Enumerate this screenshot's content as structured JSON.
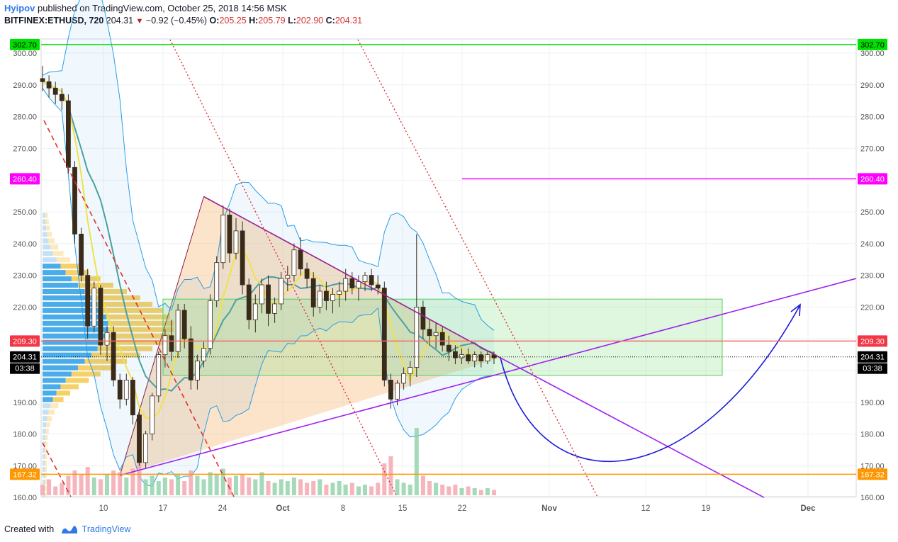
{
  "header": {
    "author": "Hyipov",
    "published_text": "published on TradingView.com, October 25, 2018 14:56 MSK",
    "symbol": "BITFINEX:ETHUSD, 720",
    "last": "204.31",
    "change": "−0.92 (−0.45%)",
    "o_label": "O:",
    "o": "205.25",
    "h_label": "H:",
    "h": "205.79",
    "l_label": "L:",
    "l": "202.90",
    "c_label": "C:",
    "c": "204.31"
  },
  "footer": {
    "created_with": "Created with",
    "brand": "TradingView"
  },
  "chart_data": {
    "type": "candlestick",
    "ylim": [
      160,
      300
    ],
    "y_ticks": [
      "300.00",
      "290.00",
      "280.00",
      "270.00",
      "260.00",
      "250.00",
      "240.00",
      "230.00",
      "220.00",
      "210.00",
      "200.00",
      "190.00",
      "180.00",
      "170.00",
      "160.00"
    ],
    "x_labels": [
      "10",
      "17",
      "24",
      "Oct",
      "8",
      "15",
      "22",
      "Nov",
      "12",
      "19",
      "Dec"
    ],
    "price_labels": [
      {
        "value": 302.7,
        "text": "302.70",
        "color": "#00e000"
      },
      {
        "value": 260.4,
        "text": "260.40",
        "color": "#ff00ff"
      },
      {
        "value": 209.3,
        "text": "209.30",
        "color": "#f23645"
      },
      {
        "value": 204.31,
        "text": "204.31",
        "color": "#000000"
      },
      {
        "value": 167.32,
        "text": "167.32",
        "color": "#ff9800"
      }
    ],
    "countdown": "03:38",
    "ohlc": [
      [
        292,
        296,
        288,
        291
      ],
      [
        291,
        293,
        286,
        289
      ],
      [
        289,
        291,
        284,
        287
      ],
      [
        287,
        289,
        282,
        285
      ],
      [
        285,
        287,
        262,
        264
      ],
      [
        264,
        266,
        240,
        243
      ],
      [
        243,
        245,
        228,
        230
      ],
      [
        230,
        232,
        210,
        214
      ],
      [
        214,
        228,
        212,
        226
      ],
      [
        226,
        227,
        205,
        208
      ],
      [
        208,
        214,
        203,
        212
      ],
      [
        212,
        214,
        195,
        197
      ],
      [
        197,
        199,
        188,
        191
      ],
      [
        191,
        199,
        189,
        197
      ],
      [
        197,
        198,
        183,
        186
      ],
      [
        186,
        188,
        170,
        171
      ],
      [
        171,
        181,
        169,
        180
      ],
      [
        180,
        193,
        178,
        192
      ],
      [
        192,
        206,
        190,
        205
      ],
      [
        205,
        213,
        201,
        211
      ],
      [
        211,
        216,
        203,
        206
      ],
      [
        206,
        221,
        204,
        219
      ],
      [
        219,
        221,
        207,
        210
      ],
      [
        210,
        214,
        194,
        197
      ],
      [
        197,
        205,
        194,
        203
      ],
      [
        203,
        209,
        201,
        207
      ],
      [
        207,
        224,
        205,
        222
      ],
      [
        222,
        236,
        220,
        234
      ],
      [
        234,
        252,
        232,
        249
      ],
      [
        249,
        251,
        234,
        237
      ],
      [
        237,
        248,
        235,
        244
      ],
      [
        244,
        247,
        224,
        227
      ],
      [
        227,
        229,
        213,
        216
      ],
      [
        216,
        224,
        212,
        221
      ],
      [
        221,
        229,
        218,
        227
      ],
      [
        227,
        230,
        214,
        218
      ],
      [
        218,
        223,
        215,
        221
      ],
      [
        221,
        231,
        219,
        229
      ],
      [
        229,
        233,
        225,
        230
      ],
      [
        230,
        240,
        228,
        238
      ],
      [
        238,
        242,
        230,
        232
      ],
      [
        232,
        234,
        226,
        229
      ],
      [
        229,
        231,
        217,
        220
      ],
      [
        220,
        227,
        218,
        225
      ],
      [
        225,
        228,
        219,
        222
      ],
      [
        222,
        226,
        218,
        224
      ],
      [
        224,
        228,
        220,
        225
      ],
      [
        225,
        232,
        222,
        229
      ],
      [
        229,
        231,
        224,
        226
      ],
      [
        226,
        230,
        222,
        228
      ],
      [
        228,
        231,
        225,
        230
      ],
      [
        230,
        232,
        225,
        227
      ],
      [
        227,
        230,
        224,
        226
      ],
      [
        226,
        228,
        195,
        197
      ],
      [
        197,
        199,
        188,
        191
      ],
      [
        191,
        197,
        189,
        196
      ],
      [
        196,
        201,
        194,
        199
      ],
      [
        199,
        203,
        195,
        201
      ],
      [
        201,
        243,
        198,
        220
      ],
      [
        220,
        222,
        210,
        213
      ],
      [
        213,
        216,
        208,
        211
      ],
      [
        211,
        215,
        207,
        212
      ],
      [
        212,
        214,
        206,
        208
      ],
      [
        208,
        211,
        203,
        206
      ],
      [
        206,
        208,
        202,
        204
      ],
      [
        204,
        207,
        202,
        205
      ],
      [
        205,
        207,
        202,
        203
      ],
      [
        203,
        206,
        201,
        205
      ],
      [
        205,
        206,
        201,
        203
      ],
      [
        203,
        206,
        202,
        205
      ],
      [
        205,
        206,
        202,
        204
      ]
    ],
    "volume": [
      6,
      9,
      5,
      7,
      11,
      14,
      12,
      16,
      10,
      9,
      12,
      14,
      13,
      10,
      15,
      18,
      9,
      11,
      8,
      10,
      9,
      12,
      8,
      14,
      11,
      9,
      13,
      12,
      15,
      10,
      11,
      12,
      10,
      9,
      13,
      8,
      7,
      9,
      8,
      10,
      9,
      7,
      8,
      9,
      6,
      7,
      8,
      6,
      7,
      5,
      6,
      5,
      7,
      18,
      22,
      9,
      7,
      6,
      38,
      11,
      8,
      7,
      6,
      5,
      6,
      4,
      5,
      4,
      3,
      4,
      3
    ]
  }
}
